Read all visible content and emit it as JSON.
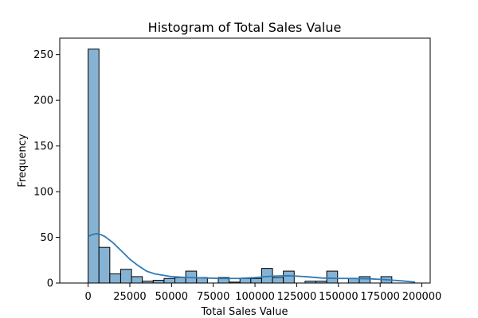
{
  "chart_data": {
    "type": "bar",
    "title": "Histogram of Total Sales Value",
    "xlabel": "Total Sales Value",
    "ylabel": "Frequency",
    "xlim": [
      -17000,
      205000
    ],
    "ylim": [
      0,
      268
    ],
    "x_ticks": [
      0,
      25000,
      50000,
      75000,
      100000,
      125000,
      150000,
      175000,
      200000
    ],
    "y_ticks": [
      0,
      50,
      100,
      150,
      200,
      250
    ],
    "grid": false,
    "bar_color": "#86b3d4",
    "line_color": "#2e7ab7",
    "bins": [
      {
        "x0": 0,
        "x1": 6500,
        "count": 256
      },
      {
        "x0": 6500,
        "x1": 13000,
        "count": 39
      },
      {
        "x0": 13000,
        "x1": 19500,
        "count": 10
      },
      {
        "x0": 19500,
        "x1": 26000,
        "count": 15
      },
      {
        "x0": 26000,
        "x1": 32500,
        "count": 7
      },
      {
        "x0": 32500,
        "x1": 39000,
        "count": 2
      },
      {
        "x0": 39000,
        "x1": 45500,
        "count": 3
      },
      {
        "x0": 45500,
        "x1": 52000,
        "count": 5
      },
      {
        "x0": 52000,
        "x1": 58500,
        "count": 6
      },
      {
        "x0": 58500,
        "x1": 65000,
        "count": 13
      },
      {
        "x0": 65000,
        "x1": 71500,
        "count": 6
      },
      {
        "x0": 71500,
        "x1": 78000,
        "count": 0
      },
      {
        "x0": 78000,
        "x1": 84500,
        "count": 6
      },
      {
        "x0": 84500,
        "x1": 91000,
        "count": 1
      },
      {
        "x0": 91000,
        "x1": 97500,
        "count": 5
      },
      {
        "x0": 97500,
        "x1": 104000,
        "count": 5
      },
      {
        "x0": 104000,
        "x1": 110500,
        "count": 16
      },
      {
        "x0": 110500,
        "x1": 117000,
        "count": 6
      },
      {
        "x0": 117000,
        "x1": 123500,
        "count": 13
      },
      {
        "x0": 123500,
        "x1": 130000,
        "count": 0
      },
      {
        "x0": 130000,
        "x1": 136500,
        "count": 2
      },
      {
        "x0": 136500,
        "x1": 143000,
        "count": 2
      },
      {
        "x0": 143000,
        "x1": 149500,
        "count": 13
      },
      {
        "x0": 149500,
        "x1": 156000,
        "count": 0
      },
      {
        "x0": 156000,
        "x1": 162500,
        "count": 5
      },
      {
        "x0": 162500,
        "x1": 169000,
        "count": 7
      },
      {
        "x0": 169000,
        "x1": 175500,
        "count": 0
      },
      {
        "x0": 175500,
        "x1": 182000,
        "count": 7
      },
      {
        "x0": 182000,
        "x1": 188500,
        "count": 0
      },
      {
        "x0": 188500,
        "x1": 195000,
        "count": 0
      }
    ],
    "kde": {
      "x": [
        0,
        2500,
        5000,
        7500,
        10000,
        15000,
        20000,
        25000,
        30000,
        35000,
        40000,
        50000,
        60000,
        70000,
        80000,
        90000,
        100000,
        110000,
        120000,
        130000,
        140000,
        150000,
        160000,
        170000,
        180000,
        190000,
        196000
      ],
      "y": [
        51,
        53,
        54,
        53,
        51,
        44,
        35,
        26,
        19,
        13,
        10,
        7,
        6,
        5.5,
        5,
        5,
        6,
        7.5,
        8,
        7,
        5.5,
        5,
        5,
        4.5,
        3.5,
        2,
        1
      ]
    }
  }
}
